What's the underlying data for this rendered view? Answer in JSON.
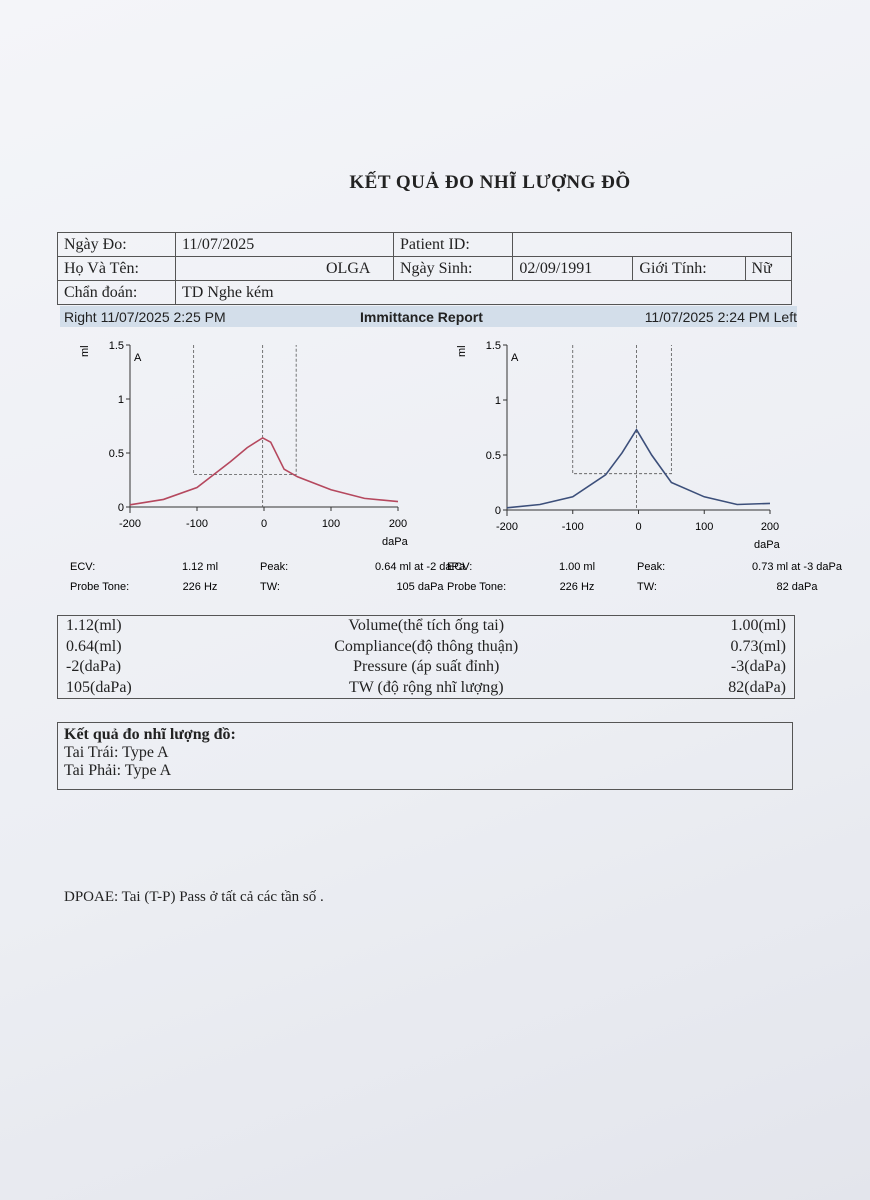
{
  "header": {
    "title": "KẾT QUẢ ĐO NHĨ LƯỢNG ĐỒ"
  },
  "patient": {
    "rows": [
      [
        "Ngày Đo:",
        "11/07/2025",
        "Patient ID:"
      ],
      [
        "Họ Và Tên:",
        "OLGA",
        "Ngày Sinh:",
        "02/09/1991",
        "Giới Tính:",
        "Nữ"
      ],
      [
        "Chẩn đoán:",
        "TD Nghe kém"
      ]
    ]
  },
  "report_bar": {
    "left": "Right 11/07/2025 2:25 PM",
    "center": "Immittance Report",
    "right": "11/07/2025 2:24 PM Left"
  },
  "charts": [
    {
      "type": "line",
      "y_label": "ml",
      "type_label": "A",
      "x_label": "daPa",
      "color": "#b5485e",
      "x": [
        -200,
        -150,
        -100,
        -50,
        -25,
        -2,
        10,
        30,
        50,
        100,
        150,
        200
      ],
      "values": [
        0.02,
        0.07,
        0.18,
        0.42,
        0.55,
        0.64,
        0.6,
        0.35,
        0.28,
        0.16,
        0.08,
        0.05
      ],
      "tw_box": {
        "x": [
          -105,
          48
        ],
        "y": 0.3
      },
      "xlim": [
        -200,
        200
      ],
      "ylim": [
        0,
        1.5
      ],
      "xticks": [
        -200,
        -100,
        0,
        100,
        200
      ],
      "yticks": [
        0,
        0.5,
        1,
        1.5
      ],
      "measures": [
        [
          "ECV:",
          "1.12 ml",
          "Peak:",
          "0.64 ml at -2 daPa"
        ],
        [
          "Probe Tone:",
          "226 Hz",
          "TW:",
          "105 daPa"
        ]
      ]
    },
    {
      "type": "line",
      "y_label": "ml",
      "type_label": "A",
      "x_label": "daPa",
      "color": "#3c4f7a",
      "x": [
        -200,
        -150,
        -100,
        -50,
        -25,
        -3,
        20,
        50,
        100,
        150,
        200
      ],
      "values": [
        0.02,
        0.05,
        0.12,
        0.32,
        0.52,
        0.73,
        0.5,
        0.25,
        0.12,
        0.05,
        0.06
      ],
      "tw_box": {
        "x": [
          -100,
          50
        ],
        "y": 0.33
      },
      "xlim": [
        -200,
        200
      ],
      "ylim": [
        0,
        1.5
      ],
      "xticks": [
        -200,
        -100,
        0,
        100,
        200
      ],
      "yticks": [
        0,
        0.5,
        1,
        1.5
      ],
      "measures": [
        [
          "ECV:",
          "1.00 ml",
          "Peak:",
          "0.73 ml at -3 daPa"
        ],
        [
          "Probe Tone:",
          "226 Hz",
          "TW:",
          "82 daPa"
        ]
      ]
    }
  ],
  "summary": {
    "rows": [
      [
        "1.12(ml)",
        "Volume(thể tích ống tai)",
        "1.00(ml)"
      ],
      [
        "0.64(ml)",
        "Compliance(độ thông thuận)",
        "0.73(ml)"
      ],
      [
        "-2(daPa)",
        "Pressure (áp suất đỉnh)",
        "-3(daPa)"
      ],
      [
        "105(daPa)",
        "TW (độ rộng nhĩ lượng)",
        "82(daPa)"
      ]
    ]
  },
  "result": {
    "title": "Kết quả đo nhĩ lượng đồ:",
    "lines": [
      "Tai Trái: Type A",
      "Tai Phải: Type A"
    ]
  },
  "dpoae": "DPOAE: Tai (T-P) Pass ở tất cả các tần số ."
}
